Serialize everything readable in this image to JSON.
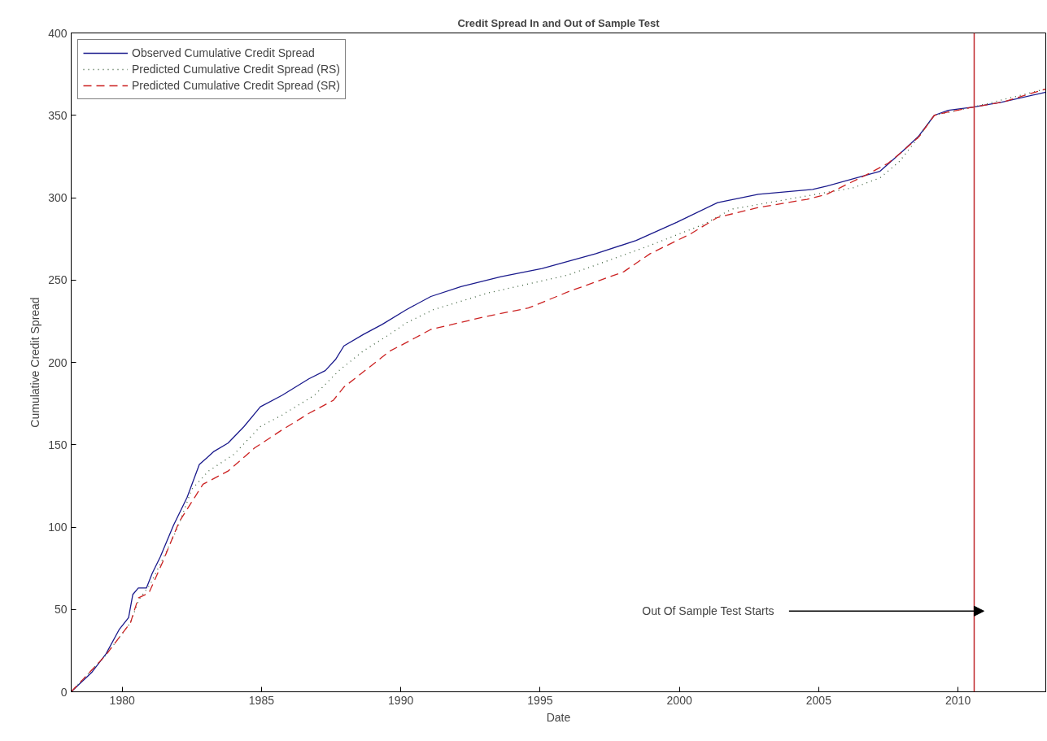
{
  "chart_data": {
    "type": "line",
    "title": "Credit Spread In and Out of Sample Test",
    "xlabel": "Date",
    "ylabel": "Cumulative Credit Spread",
    "xlim": [
      1978.17,
      2013.15
    ],
    "ylim": [
      0,
      400
    ],
    "xticks": [
      1980,
      1985,
      1990,
      1995,
      2000,
      2005,
      2010
    ],
    "yticks": [
      0,
      50,
      100,
      150,
      200,
      250,
      300,
      350,
      400
    ],
    "grid": false,
    "legend": "top left",
    "series": [
      {
        "name": "Observed Cumulative Credit Spread",
        "color": "#1a1a8c",
        "line_style": "solid",
        "x": [
          1978.17,
          1978.92,
          1979.42,
          1979.9,
          1980.23,
          1980.38,
          1980.58,
          1980.87,
          1981.08,
          1981.37,
          1981.84,
          1982.33,
          1982.77,
          1983.3,
          1983.8,
          1984.37,
          1984.96,
          1985.74,
          1986.7,
          1987.29,
          1987.67,
          1987.96,
          1988.66,
          1989.33,
          1990.2,
          1991.08,
          1992.16,
          1993.6,
          1995.07,
          1997.0,
          1998.45,
          1999.9,
          2001.37,
          2002.83,
          2004.78,
          2005.28,
          2007.2,
          2008.0,
          2008.57,
          2009.15,
          2009.65,
          2010.55,
          2011.57,
          2013.15
        ],
        "values": [
          0,
          12,
          23,
          38,
          45,
          59,
          63,
          63,
          72,
          82,
          101,
          118,
          138,
          146,
          151,
          161,
          173,
          180,
          190,
          195,
          202,
          210,
          217,
          223,
          232,
          240,
          246,
          252,
          257,
          266,
          274,
          285,
          297,
          302,
          305,
          307,
          316,
          328,
          337,
          350,
          353,
          355,
          358,
          364
        ]
      },
      {
        "name": "Predicted Cumulative Credit Spread (RS)",
        "color": "#3a5f3a",
        "line_style": "dotted",
        "x": [
          1978.17,
          1979.4,
          1980.3,
          1980.6,
          1981.0,
          1981.5,
          1982.0,
          1982.5,
          1983.1,
          1984.0,
          1984.96,
          1985.74,
          1986.9,
          1987.78,
          1988.66,
          1989.6,
          1990.2,
          1991.17,
          1993.1,
          1996.0,
          1998.95,
          2000.9,
          2001.87,
          2006.24,
          2007.2,
          2007.9,
          2008.6,
          2009.15,
          2010.55,
          2013.15
        ],
        "values": [
          0,
          22,
          42,
          56,
          65,
          82,
          100,
          123,
          134,
          144,
          161,
          168,
          180,
          195,
          207,
          217,
          224,
          232,
          242,
          253,
          271,
          284,
          293,
          306,
          312,
          322,
          337,
          350,
          355,
          366
        ]
      },
      {
        "name": "Predicted Cumulative Credit Spread (SR)",
        "color": "#cc2222",
        "line_style": "dashed",
        "x": [
          1978.17,
          1979.4,
          1980.3,
          1980.58,
          1980.96,
          1981.46,
          1982.04,
          1982.6,
          1982.9,
          1983.8,
          1984.75,
          1985.74,
          1986.7,
          1987.58,
          1987.96,
          1989.62,
          1990.2,
          1991.08,
          1993.1,
          1994.58,
          1996.03,
          1998.0,
          1998.95,
          2000.4,
          2001.37,
          2002.83,
          2004.58,
          2005.28,
          2006.73,
          2007.5,
          2008.0,
          2008.6,
          2009.15,
          2009.65,
          2010.55,
          2011.6,
          2013.15
        ],
        "values": [
          0,
          22,
          42,
          57,
          60,
          79,
          103,
          118,
          126,
          134,
          148,
          159,
          169,
          177,
          185,
          207,
          212,
          220,
          228,
          233,
          243,
          255,
          266,
          278,
          288,
          294,
          299,
          302,
          314,
          321,
          328,
          337,
          350,
          352,
          355,
          358,
          366
        ]
      }
    ],
    "ref_lines": [
      {
        "axis": "x",
        "value": 2010.58,
        "color": "#c0282d",
        "line_style": "solid"
      }
    ],
    "annotations": [
      "Out Of Sample Test Starts"
    ]
  }
}
